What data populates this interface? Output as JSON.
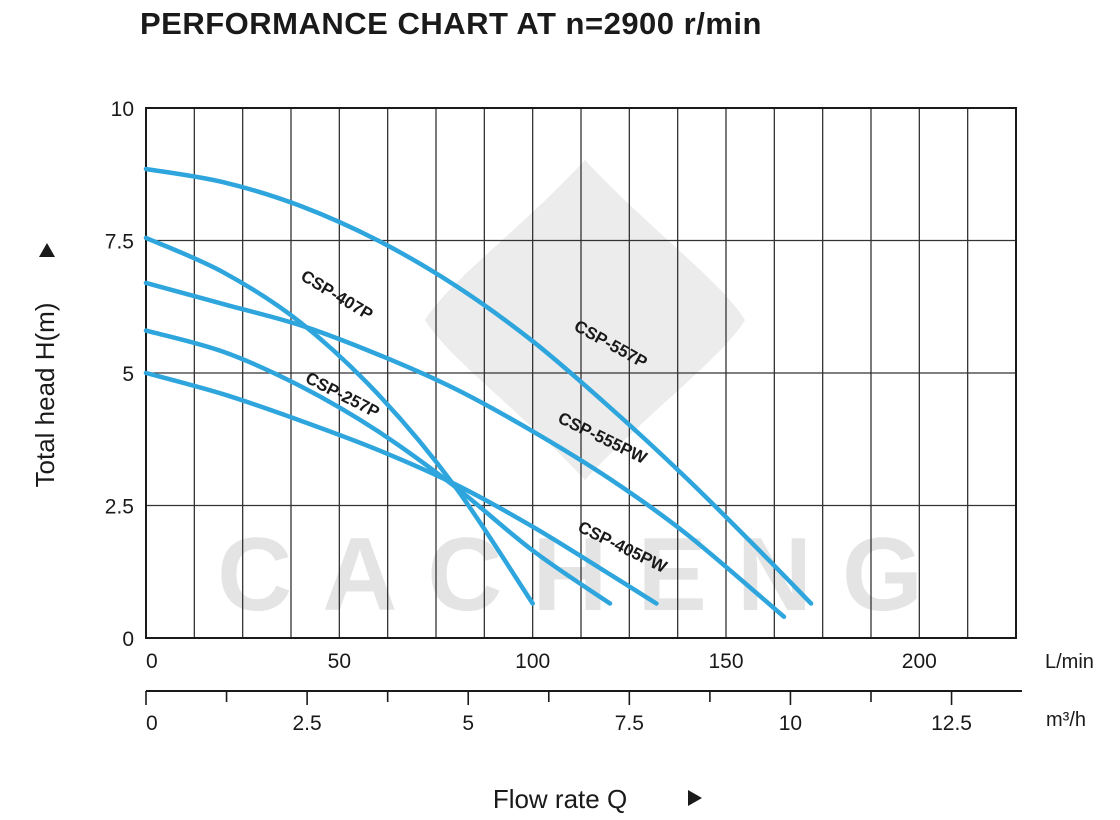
{
  "chart_data": {
    "type": "line",
    "title": "PERFORMANCE CHART AT n=2900 r/min",
    "xlabel": "Flow rate Q",
    "ylabel": "Total head H(m)",
    "x_unit_primary": "L/min",
    "x_unit_secondary": "m³/h",
    "xlim": [
      0,
      225
    ],
    "ylim": [
      0,
      10
    ],
    "x_ticks": [
      "0",
      "50",
      "100",
      "150",
      "200"
    ],
    "x_ticks_secondary": [
      "0",
      "2.5",
      "5",
      "7.5",
      "10",
      "12.5"
    ],
    "y_ticks": [
      "0",
      "2.5",
      "5",
      "7.5",
      "10"
    ],
    "x_ticks_values": [
      0,
      50,
      100,
      150,
      200
    ],
    "x_ticks_secondary_values": [
      0,
      2.5,
      5,
      7.5,
      10,
      12.5
    ],
    "y_ticks_values": [
      0,
      2.5,
      5,
      7.5,
      10
    ],
    "grid": true,
    "line_color": "#2ea6dd",
    "watermark": "CACHENG",
    "series": [
      {
        "name": "CSP-557P",
        "x": [
          0,
          20,
          40,
          60,
          80,
          100,
          120,
          140,
          160,
          172
        ],
        "y": [
          8.85,
          8.6,
          8.15,
          7.5,
          6.65,
          5.6,
          4.35,
          3.0,
          1.55,
          0.65
        ]
      },
      {
        "name": "CSP-407P",
        "x": [
          0,
          20,
          40,
          60,
          80,
          100
        ],
        "y": [
          7.55,
          6.9,
          5.95,
          4.6,
          2.85,
          0.65
        ]
      },
      {
        "name": "CSP-555PW",
        "x": [
          0,
          20,
          40,
          60,
          80,
          100,
          120,
          140,
          165
        ],
        "y": [
          6.7,
          6.3,
          5.9,
          5.35,
          4.7,
          3.9,
          3.0,
          1.95,
          0.4
        ]
      },
      {
        "name": "CSP-257P",
        "x": [
          0,
          20,
          40,
          60,
          80,
          100,
          120
        ],
        "y": [
          5.8,
          5.4,
          4.75,
          3.9,
          2.85,
          1.65,
          0.65
        ]
      },
      {
        "name": "CSP-405PW",
        "x": [
          0,
          20,
          40,
          60,
          80,
          100,
          120,
          132
        ],
        "y": [
          5.0,
          4.6,
          4.1,
          3.55,
          2.9,
          2.1,
          1.2,
          0.65
        ]
      }
    ]
  }
}
